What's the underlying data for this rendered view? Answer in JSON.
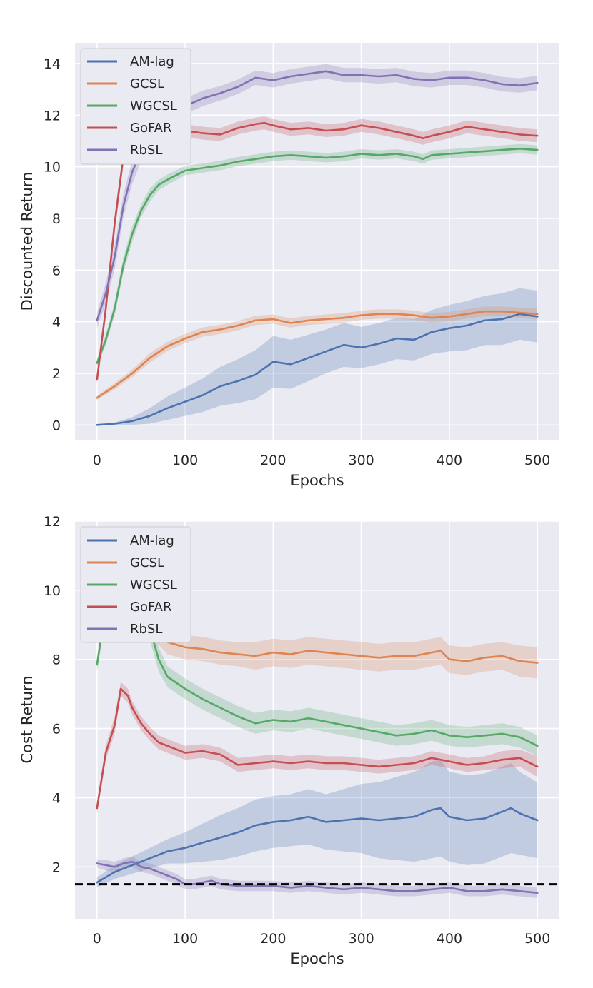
{
  "figure": {
    "background": "#ffffff",
    "panel_color": "#eaeaf2",
    "grid_color": "#ffffff",
    "legend_bg": "#eaeaf2",
    "legend_edge": "#cccccc"
  },
  "chart_data": [
    {
      "type": "line",
      "title": "",
      "xlabel": "Epochs",
      "ylabel": "Discounted Return",
      "xlim": [
        -25,
        525
      ],
      "ylim": [
        -0.6,
        14.8
      ],
      "xticks": [
        0,
        100,
        200,
        300,
        400,
        500
      ],
      "yticks": [
        0,
        2,
        4,
        6,
        8,
        10,
        12,
        14
      ],
      "grid": true,
      "legend": "top-left",
      "series": [
        {
          "name": "AM-lag",
          "color": "#4c72b0",
          "x": [
            0,
            20,
            40,
            60,
            80,
            100,
            120,
            140,
            160,
            180,
            200,
            220,
            240,
            260,
            280,
            300,
            320,
            340,
            360,
            380,
            400,
            420,
            440,
            460,
            480,
            500
          ],
          "y": [
            0,
            0.05,
            0.15,
            0.35,
            0.65,
            0.9,
            1.15,
            1.5,
            1.7,
            1.95,
            2.45,
            2.35,
            2.6,
            2.85,
            3.1,
            3.0,
            3.15,
            3.35,
            3.3,
            3.6,
            3.75,
            3.85,
            4.05,
            4.1,
            4.3,
            4.2
          ],
          "band": [
            0,
            0.05,
            0.15,
            0.3,
            0.45,
            0.55,
            0.65,
            0.75,
            0.85,
            0.95,
            1.0,
            0.95,
            0.9,
            0.85,
            0.85,
            0.8,
            0.8,
            0.8,
            0.8,
            0.85,
            0.9,
            0.95,
            0.95,
            1.0,
            1.0,
            1.0
          ]
        },
        {
          "name": "GCSL",
          "color": "#dd8452",
          "x": [
            0,
            20,
            40,
            60,
            80,
            100,
            120,
            140,
            160,
            180,
            200,
            220,
            240,
            260,
            280,
            300,
            320,
            340,
            360,
            380,
            400,
            420,
            440,
            460,
            480,
            500
          ],
          "y": [
            1.05,
            1.5,
            2.0,
            2.6,
            3.05,
            3.35,
            3.6,
            3.7,
            3.85,
            4.05,
            4.1,
            3.95,
            4.05,
            4.1,
            4.15,
            4.25,
            4.3,
            4.3,
            4.25,
            4.15,
            4.2,
            4.3,
            4.4,
            4.4,
            4.35,
            4.3
          ],
          "band": [
            0.08,
            0.12,
            0.15,
            0.18,
            0.18,
            0.18,
            0.18,
            0.18,
            0.18,
            0.18,
            0.18,
            0.18,
            0.18,
            0.18,
            0.18,
            0.18,
            0.18,
            0.18,
            0.18,
            0.18,
            0.18,
            0.18,
            0.18,
            0.18,
            0.2,
            0.2
          ]
        },
        {
          "name": "WGCSL",
          "color": "#55a868",
          "x": [
            0,
            10,
            20,
            30,
            40,
            50,
            60,
            70,
            80,
            100,
            120,
            140,
            160,
            180,
            200,
            220,
            240,
            260,
            280,
            300,
            320,
            340,
            360,
            370,
            380,
            400,
            420,
            440,
            460,
            480,
            500
          ],
          "y": [
            2.4,
            3.3,
            4.5,
            6.2,
            7.4,
            8.3,
            8.9,
            9.3,
            9.5,
            9.85,
            9.95,
            10.05,
            10.2,
            10.3,
            10.4,
            10.45,
            10.4,
            10.35,
            10.4,
            10.5,
            10.45,
            10.5,
            10.4,
            10.3,
            10.45,
            10.5,
            10.55,
            10.6,
            10.65,
            10.7,
            10.65
          ],
          "band": [
            0.15,
            0.2,
            0.25,
            0.3,
            0.3,
            0.25,
            0.25,
            0.2,
            0.2,
            0.18,
            0.18,
            0.18,
            0.18,
            0.18,
            0.18,
            0.18,
            0.18,
            0.18,
            0.18,
            0.18,
            0.18,
            0.18,
            0.18,
            0.18,
            0.18,
            0.18,
            0.18,
            0.18,
            0.18,
            0.18,
            0.18
          ]
        },
        {
          "name": "GoFAR",
          "color": "#c44e52",
          "x": [
            0,
            10,
            20,
            30,
            40,
            60,
            80,
            100,
            120,
            140,
            160,
            180,
            190,
            200,
            220,
            240,
            260,
            280,
            300,
            320,
            340,
            360,
            370,
            380,
            400,
            420,
            440,
            460,
            480,
            500
          ],
          "y": [
            1.75,
            4.5,
            7.8,
            10.4,
            11.3,
            11.5,
            11.45,
            11.4,
            11.3,
            11.25,
            11.5,
            11.65,
            11.7,
            11.6,
            11.45,
            11.5,
            11.4,
            11.45,
            11.6,
            11.5,
            11.35,
            11.2,
            11.1,
            11.2,
            11.35,
            11.55,
            11.45,
            11.35,
            11.25,
            11.2
          ],
          "band": [
            0.15,
            0.3,
            0.35,
            0.3,
            0.25,
            0.25,
            0.25,
            0.25,
            0.25,
            0.25,
            0.25,
            0.25,
            0.25,
            0.25,
            0.25,
            0.25,
            0.25,
            0.25,
            0.25,
            0.25,
            0.25,
            0.25,
            0.25,
            0.25,
            0.25,
            0.25,
            0.25,
            0.25,
            0.25,
            0.25
          ]
        },
        {
          "name": "RbSL",
          "color": "#8172b3",
          "x": [
            0,
            10,
            20,
            30,
            40,
            50,
            60,
            80,
            100,
            120,
            140,
            160,
            180,
            200,
            220,
            240,
            260,
            280,
            300,
            320,
            340,
            360,
            380,
            400,
            420,
            440,
            460,
            480,
            500
          ],
          "y": [
            4.05,
            5.1,
            6.5,
            8.5,
            9.8,
            10.6,
            11.2,
            11.9,
            12.35,
            12.65,
            12.85,
            13.1,
            13.45,
            13.35,
            13.5,
            13.6,
            13.7,
            13.55,
            13.55,
            13.5,
            13.55,
            13.4,
            13.35,
            13.45,
            13.45,
            13.35,
            13.2,
            13.15,
            13.25
          ],
          "band": [
            0.3,
            0.4,
            0.45,
            0.45,
            0.45,
            0.4,
            0.35,
            0.3,
            0.3,
            0.3,
            0.28,
            0.28,
            0.28,
            0.28,
            0.28,
            0.28,
            0.28,
            0.28,
            0.28,
            0.28,
            0.28,
            0.28,
            0.28,
            0.28,
            0.28,
            0.28,
            0.28,
            0.28,
            0.28
          ]
        }
      ]
    },
    {
      "type": "line",
      "title": "",
      "xlabel": "Epochs",
      "ylabel": "Cost Return",
      "xlim": [
        -25,
        525
      ],
      "ylim": [
        0.5,
        12.0
      ],
      "xticks": [
        0,
        100,
        200,
        300,
        400,
        500
      ],
      "yticks": [
        2,
        4,
        6,
        8,
        10,
        12
      ],
      "grid": true,
      "legend": "top-left",
      "threshold": {
        "y": 1.5,
        "color": "#000000",
        "style": "dashed"
      },
      "series": [
        {
          "name": "AM-lag",
          "color": "#4c72b0",
          "x": [
            0,
            20,
            40,
            60,
            80,
            100,
            120,
            140,
            160,
            180,
            200,
            220,
            240,
            260,
            280,
            300,
            320,
            340,
            360,
            380,
            390,
            400,
            420,
            440,
            460,
            470,
            480,
            500
          ],
          "y": [
            1.55,
            1.85,
            2.05,
            2.25,
            2.45,
            2.55,
            2.7,
            2.85,
            3.0,
            3.2,
            3.3,
            3.35,
            3.45,
            3.3,
            3.35,
            3.4,
            3.35,
            3.4,
            3.45,
            3.65,
            3.7,
            3.45,
            3.35,
            3.4,
            3.6,
            3.7,
            3.55,
            3.35
          ],
          "band": [
            0.15,
            0.2,
            0.25,
            0.3,
            0.35,
            0.45,
            0.55,
            0.65,
            0.7,
            0.75,
            0.75,
            0.75,
            0.8,
            0.8,
            0.9,
            1.0,
            1.1,
            1.2,
            1.3,
            1.4,
            1.4,
            1.3,
            1.3,
            1.3,
            1.3,
            1.3,
            1.2,
            1.1
          ]
        },
        {
          "name": "GCSL",
          "color": "#dd8452",
          "x": [
            0,
            10,
            20,
            30,
            40,
            50,
            60,
            80,
            100,
            120,
            140,
            160,
            180,
            200,
            220,
            240,
            260,
            280,
            300,
            320,
            340,
            360,
            380,
            390,
            400,
            420,
            440,
            460,
            480,
            500
          ],
          "y": [
            8.9,
            9.9,
            10.5,
            10.8,
            10.4,
            9.6,
            9.0,
            8.5,
            8.35,
            8.3,
            8.2,
            8.15,
            8.1,
            8.2,
            8.15,
            8.25,
            8.2,
            8.15,
            8.1,
            8.05,
            8.1,
            8.1,
            8.2,
            8.25,
            8.0,
            7.95,
            8.05,
            8.1,
            7.95,
            7.9
          ],
          "band": [
            0.2,
            0.3,
            0.3,
            0.3,
            0.3,
            0.3,
            0.3,
            0.35,
            0.35,
            0.35,
            0.35,
            0.35,
            0.4,
            0.4,
            0.4,
            0.4,
            0.4,
            0.4,
            0.4,
            0.4,
            0.4,
            0.4,
            0.4,
            0.4,
            0.4,
            0.4,
            0.4,
            0.4,
            0.45,
            0.45
          ]
        },
        {
          "name": "WGCSL",
          "color": "#55a868",
          "x": [
            0,
            10,
            20,
            30,
            40,
            50,
            60,
            70,
            80,
            100,
            120,
            140,
            160,
            180,
            200,
            220,
            240,
            260,
            280,
            300,
            320,
            340,
            360,
            380,
            400,
            420,
            440,
            460,
            480,
            500
          ],
          "y": [
            7.85,
            9.5,
            10.6,
            11.05,
            10.6,
            9.8,
            8.9,
            8.0,
            7.5,
            7.15,
            6.85,
            6.6,
            6.35,
            6.15,
            6.25,
            6.2,
            6.3,
            6.2,
            6.1,
            6.0,
            5.9,
            5.8,
            5.85,
            5.95,
            5.8,
            5.75,
            5.8,
            5.85,
            5.75,
            5.5
          ],
          "band": [
            0.2,
            0.3,
            0.35,
            0.35,
            0.35,
            0.35,
            0.35,
            0.35,
            0.3,
            0.3,
            0.3,
            0.3,
            0.3,
            0.3,
            0.3,
            0.3,
            0.3,
            0.3,
            0.3,
            0.3,
            0.3,
            0.3,
            0.3,
            0.3,
            0.3,
            0.3,
            0.3,
            0.3,
            0.3,
            0.3
          ]
        },
        {
          "name": "GoFAR",
          "color": "#c44e52",
          "x": [
            0,
            10,
            20,
            27,
            35,
            40,
            50,
            60,
            70,
            80,
            100,
            120,
            140,
            160,
            180,
            200,
            220,
            240,
            260,
            280,
            300,
            320,
            340,
            360,
            380,
            400,
            420,
            440,
            460,
            480,
            500
          ],
          "y": [
            3.7,
            5.3,
            6.1,
            7.15,
            6.95,
            6.6,
            6.15,
            5.85,
            5.6,
            5.5,
            5.3,
            5.35,
            5.25,
            4.95,
            5.0,
            5.05,
            5.0,
            5.05,
            5.0,
            5.0,
            4.95,
            4.9,
            4.95,
            5.0,
            5.15,
            5.05,
            4.95,
            5.0,
            5.1,
            5.15,
            4.9
          ],
          "band": [
            0.15,
            0.2,
            0.25,
            0.2,
            0.2,
            0.2,
            0.2,
            0.2,
            0.2,
            0.2,
            0.2,
            0.2,
            0.2,
            0.2,
            0.2,
            0.2,
            0.2,
            0.2,
            0.2,
            0.2,
            0.2,
            0.2,
            0.2,
            0.2,
            0.2,
            0.2,
            0.2,
            0.2,
            0.25,
            0.25,
            0.3
          ]
        },
        {
          "name": "RbSL",
          "color": "#8172b3",
          "x": [
            0,
            10,
            20,
            30,
            40,
            50,
            60,
            70,
            80,
            90,
            100,
            110,
            120,
            130,
            140,
            160,
            180,
            200,
            220,
            240,
            260,
            280,
            300,
            320,
            340,
            360,
            380,
            400,
            420,
            440,
            460,
            480,
            500
          ],
          "y": [
            2.1,
            2.05,
            2.0,
            2.1,
            2.15,
            2.0,
            1.95,
            1.85,
            1.75,
            1.65,
            1.5,
            1.5,
            1.55,
            1.6,
            1.5,
            1.45,
            1.45,
            1.45,
            1.4,
            1.45,
            1.4,
            1.35,
            1.4,
            1.35,
            1.3,
            1.3,
            1.35,
            1.4,
            1.3,
            1.3,
            1.35,
            1.3,
            1.25
          ],
          "band": [
            0.12,
            0.15,
            0.15,
            0.15,
            0.15,
            0.15,
            0.15,
            0.15,
            0.15,
            0.15,
            0.15,
            0.15,
            0.15,
            0.15,
            0.15,
            0.15,
            0.15,
            0.15,
            0.15,
            0.15,
            0.15,
            0.15,
            0.15,
            0.15,
            0.15,
            0.15,
            0.15,
            0.15,
            0.15,
            0.15,
            0.15,
            0.15,
            0.15
          ]
        }
      ]
    }
  ]
}
